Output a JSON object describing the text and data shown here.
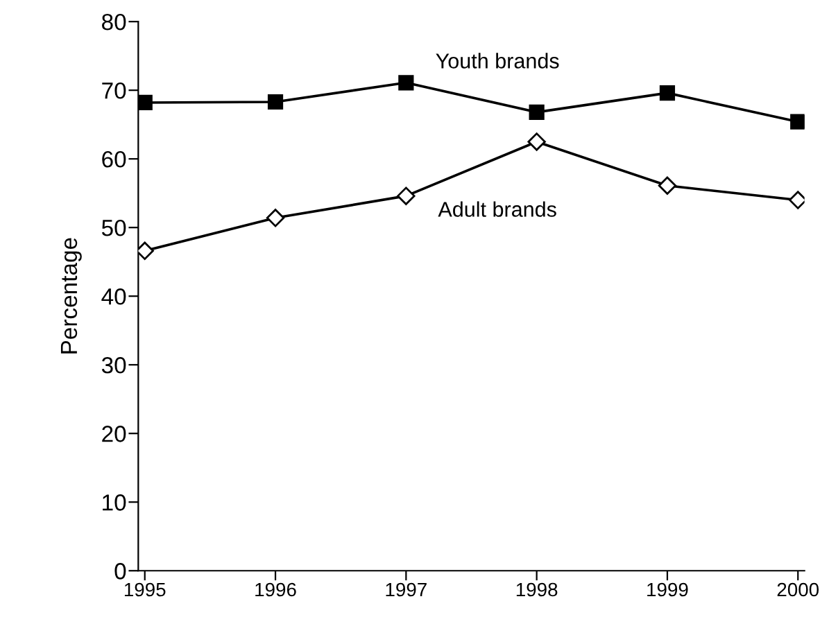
{
  "chart_data": {
    "type": "line",
    "ylabel": "Percentage",
    "categories": [
      "1995",
      "1996",
      "1997",
      "1998",
      "1999",
      "2000"
    ],
    "series": [
      {
        "name": "Youth brands",
        "color": "#000000",
        "marker": "square",
        "values": [
          68.2,
          68.3,
          71.1,
          66.8,
          69.6,
          65.4
        ]
      },
      {
        "name": "Adult brands",
        "color": "#000000",
        "marker": "diamond",
        "values": [
          46.6,
          51.4,
          54.6,
          62.5,
          56.1,
          54.0
        ]
      }
    ],
    "ylim": [
      0,
      80
    ],
    "yticks": [
      0,
      10,
      20,
      30,
      40,
      50,
      60,
      70,
      80
    ],
    "grid": false,
    "legend": false,
    "line_style": "solid"
  }
}
